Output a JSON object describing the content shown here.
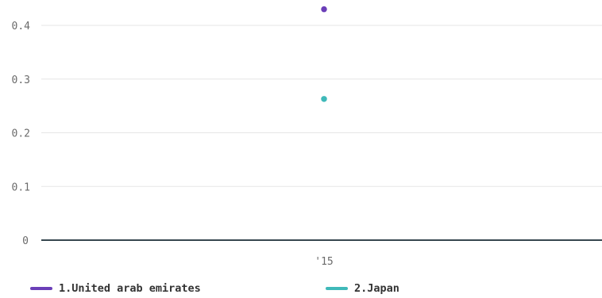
{
  "chart_data": {
    "type": "scatter",
    "x_ticks": [
      "'15"
    ],
    "y_ticks": [
      "0",
      "0.1",
      "0.2",
      "0.3",
      "0.4"
    ],
    "ylim": [
      0,
      0.44
    ],
    "grid": true,
    "legend_position": "bottom-left",
    "series": [
      {
        "name": "1.United arab emirates",
        "color": "#6b3fb8",
        "points": [
          {
            "x": "'15",
            "y": 0.43
          }
        ]
      },
      {
        "name": "2.Japan",
        "color": "#3fb9b9",
        "points": [
          {
            "x": "'15",
            "y": 0.263
          }
        ]
      }
    ]
  }
}
